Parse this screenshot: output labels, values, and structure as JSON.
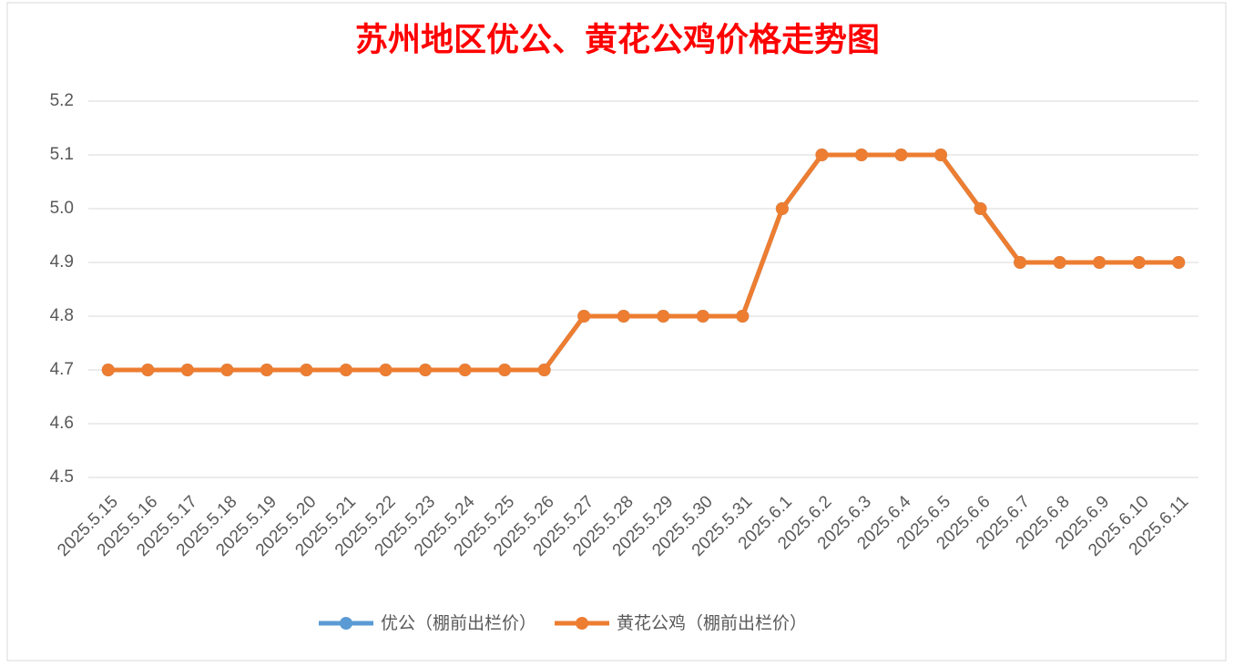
{
  "chart_data": {
    "type": "line",
    "title": "苏州地区优公、黄花公鸡价格走势图",
    "categories": [
      "2025.5.15",
      "2025.5.16",
      "2025.5.17",
      "2025.5.18",
      "2025.5.19",
      "2025.5.20",
      "2025.5.21",
      "2025.5.22",
      "2025.5.23",
      "2025.5.24",
      "2025.5.25",
      "2025.5.26",
      "2025.5.27",
      "2025.5.28",
      "2025.5.29",
      "2025.5.30",
      "2025.5.31",
      "2025.6.1",
      "2025.6.2",
      "2025.6.3",
      "2025.6.4",
      "2025.6.5",
      "2025.6.6",
      "2025.6.7",
      "2025.6.8",
      "2025.6.9",
      "2025.6.10",
      "2025.6.11"
    ],
    "series": [
      {
        "name": "优公（棚前出栏价）",
        "color": "#5b9bd5",
        "values": [
          4.7,
          4.7,
          4.7,
          4.7,
          4.7,
          4.7,
          4.7,
          4.7,
          4.7,
          4.7,
          4.7,
          4.7,
          4.8,
          4.8,
          4.8,
          4.8,
          4.8,
          5.0,
          5.1,
          5.1,
          5.1,
          5.1,
          5.0,
          4.9,
          4.9,
          4.9,
          4.9,
          4.9
        ]
      },
      {
        "name": "黄花公鸡（棚前出栏价）",
        "color": "#ed7d31",
        "values": [
          4.7,
          4.7,
          4.7,
          4.7,
          4.7,
          4.7,
          4.7,
          4.7,
          4.7,
          4.7,
          4.7,
          4.7,
          4.8,
          4.8,
          4.8,
          4.8,
          4.8,
          5.0,
          5.1,
          5.1,
          5.1,
          5.1,
          5.0,
          4.9,
          4.9,
          4.9,
          4.9,
          4.9
        ]
      }
    ],
    "ylim": [
      4.5,
      5.2
    ],
    "yticks": [
      4.5,
      4.6,
      4.7,
      4.8,
      4.9,
      {
        "value": 5,
        "label": "5.0"
      },
      5.1,
      5.2
    ],
    "grid": true,
    "legend": "bottom"
  }
}
